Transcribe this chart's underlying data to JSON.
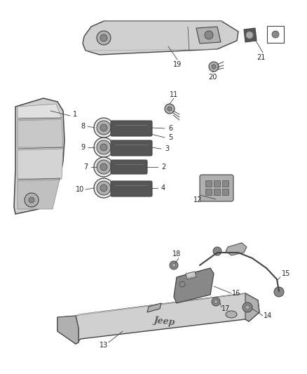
{
  "bg_color": "#ffffff",
  "line_color": "#444444",
  "dark_color": "#222222",
  "gray1": "#d0d0d0",
  "gray2": "#b0b0b0",
  "gray3": "#888888",
  "gray4": "#555555",
  "gray5": "#333333",
  "label_fontsize": 7.0,
  "fig_width": 4.38,
  "fig_height": 5.33,
  "dpi": 100
}
